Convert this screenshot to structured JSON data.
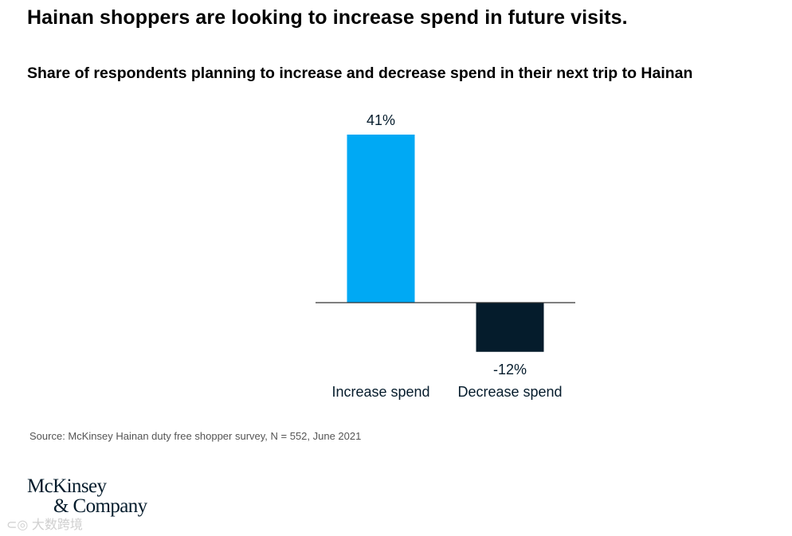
{
  "title": "Hainan shoppers are looking to increase spend in future visits.",
  "chart_data": {
    "type": "bar",
    "title": "Share of respondents planning to increase and decrease spend in their next trip to Hainan",
    "categories": [
      "Increase spend",
      "Decrease spend"
    ],
    "values": [
      41,
      -12
    ],
    "value_labels": [
      "41%",
      "-12%"
    ],
    "colors": [
      "#00a9f4",
      "#051c2c"
    ],
    "xlabel": "",
    "ylabel": "",
    "ylim": [
      -12,
      41
    ],
    "grid": false,
    "legend": "none"
  },
  "source": "Source: McKinsey Hainan duty free shopper survey, N = 552, June 2021",
  "logo": {
    "line1": "McKinsey",
    "line2": "& Company"
  },
  "watermark": "大数跨境"
}
